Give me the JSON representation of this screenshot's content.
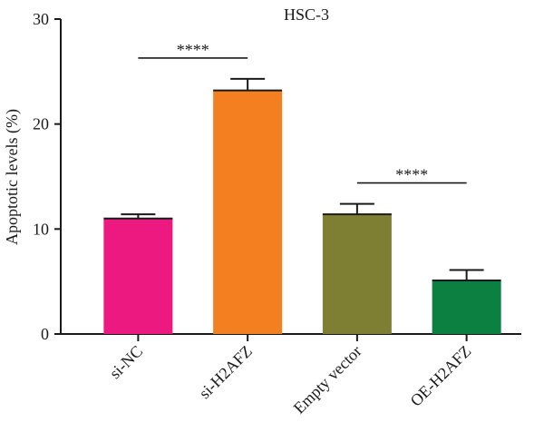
{
  "chart_data": {
    "type": "bar",
    "title": "HSC-3",
    "xlabel": "",
    "ylabel": "Apoptotic levels (%)",
    "ylim": [
      0,
      30
    ],
    "yticks": [
      0,
      10,
      20,
      30
    ],
    "grid": false,
    "categories": [
      "si-NC",
      "si-H2AFZ",
      "Empty vector",
      "OE-H2AFZ"
    ],
    "values": [
      11.0,
      23.2,
      11.4,
      5.1
    ],
    "errors": [
      0.4,
      1.1,
      1.0,
      1.0
    ],
    "colors": [
      "#ec1a80",
      "#f47f20",
      "#7f7f34",
      "#0c8041"
    ],
    "significance": [
      {
        "from": 0,
        "to": 1,
        "label": "****"
      },
      {
        "from": 2,
        "to": 3,
        "label": "****"
      }
    ]
  }
}
